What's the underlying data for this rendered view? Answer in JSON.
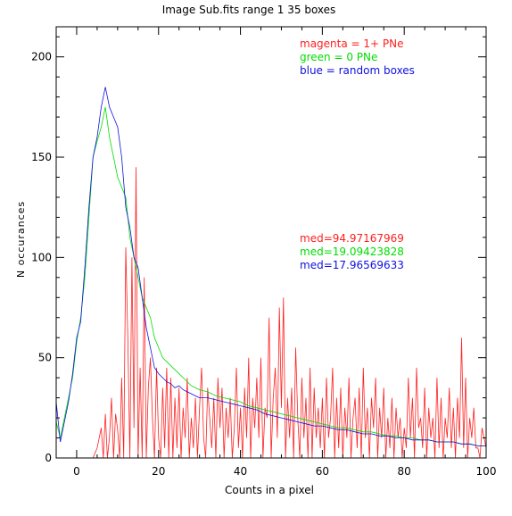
{
  "chart_data": {
    "type": "line",
    "title": "Image Sub.fits   range 1    35 boxes",
    "xlabel": "Counts in a pixel",
    "ylabel": "N occurances",
    "xlim": [
      -5,
      100
    ],
    "ylim": [
      0,
      215
    ],
    "xticks": [
      0,
      20,
      40,
      60,
      80,
      100
    ],
    "yticks": [
      0,
      50,
      100,
      150,
      200
    ],
    "grid": false,
    "legend_position": "top-right",
    "legend": [
      {
        "text": "magenta = 1+ PNe",
        "color": "#ff2020"
      },
      {
        "text": "green = 0 PNe",
        "color": "#00dd00"
      },
      {
        "text": "blue = random boxes",
        "color": "#1010e0"
      }
    ],
    "medians": [
      {
        "text": "med=94.97167969",
        "color": "#ff2020"
      },
      {
        "text": "med=19.09423828",
        "color": "#00dd00"
      },
      {
        "text": "med=17.96569633",
        "color": "#1010e0"
      }
    ],
    "series": [
      {
        "color": "#ff2020",
        "x": [
          3,
          4,
          5,
          6,
          6.5,
          7,
          7.5,
          8,
          8.5,
          9,
          9.5,
          10,
          10.5,
          11,
          11.5,
          12,
          12.5,
          13,
          13.5,
          14,
          14.5,
          15,
          15.5,
          16,
          16.5,
          17,
          17.5,
          18,
          18.5,
          19,
          19.5,
          20,
          20.5,
          21,
          21.5,
          22,
          22.5,
          23,
          23.5,
          24,
          24.5,
          25,
          25.5,
          26,
          26.5,
          27,
          27.5,
          28,
          28.5,
          29,
          29.5,
          30,
          30.5,
          31,
          31.5,
          32,
          32.5,
          33,
          33.5,
          34,
          34.5,
          35,
          35.5,
          36,
          36.5,
          37,
          37.5,
          38,
          38.5,
          39,
          39.5,
          40,
          40.5,
          41,
          41.5,
          42,
          42.5,
          43,
          43.5,
          44,
          44.5,
          45,
          45.5,
          46,
          46.5,
          47,
          47.5,
          48,
          48.5,
          49,
          49.5,
          50,
          50.5,
          51,
          51.5,
          52,
          52.5,
          53,
          53.5,
          54,
          54.5,
          55,
          55.5,
          56,
          56.5,
          57,
          57.5,
          58,
          58.5,
          59,
          59.5,
          60,
          60.5,
          61,
          61.5,
          62,
          62.5,
          63,
          63.5,
          64,
          64.5,
          65,
          65.5,
          66,
          66.5,
          67,
          67.5,
          68,
          68.5,
          69,
          69.5,
          70,
          70.5,
          71,
          71.5,
          72,
          72.5,
          73,
          73.5,
          74,
          74.5,
          75,
          75.5,
          76,
          76.5,
          77,
          77.5,
          78,
          78.5,
          79,
          79.5,
          80,
          80.5,
          81,
          81.5,
          82,
          82.5,
          83,
          83.5,
          84,
          84.5,
          85,
          85.5,
          86,
          86.5,
          87,
          87.5,
          88,
          88.5,
          89,
          89.5,
          90,
          90.5,
          91,
          91.5,
          92,
          92.5,
          93,
          93.5,
          94,
          94.5,
          95,
          95.5,
          96,
          96.5,
          97,
          97.5,
          98,
          98.5,
          99,
          99.5,
          100
        ],
        "y": [
          0,
          0,
          5,
          15,
          0,
          22,
          0,
          10,
          30,
          0,
          22,
          14,
          0,
          40,
          0,
          105,
          60,
          0,
          100,
          15,
          145,
          0,
          45,
          0,
          90,
          0,
          35,
          50,
          20,
          0,
          45,
          10,
          0,
          35,
          5,
          45,
          0,
          40,
          0,
          30,
          5,
          35,
          0,
          25,
          10,
          40,
          0,
          20,
          5,
          30,
          0,
          25,
          45,
          10,
          0,
          35,
          20,
          5,
          30,
          0,
          40,
          15,
          35,
          0,
          25,
          10,
          30,
          0,
          15,
          45,
          5,
          25,
          0,
          35,
          10,
          50,
          0,
          30,
          15,
          40,
          10,
          50,
          0,
          25,
          20,
          70,
          0,
          30,
          45,
          10,
          75,
          25,
          80,
          0,
          30,
          10,
          35,
          0,
          55,
          20,
          0,
          40,
          10,
          30,
          0,
          45,
          0,
          35,
          10,
          25,
          5,
          30,
          0,
          40,
          10,
          20,
          45,
          0,
          30,
          5,
          35,
          0,
          25,
          10,
          40,
          0,
          20,
          30,
          5,
          35,
          0,
          45,
          10,
          25,
          0,
          30,
          15,
          40,
          0,
          25,
          10,
          35,
          0,
          20,
          5,
          30,
          0,
          25,
          10,
          20,
          0,
          15,
          5,
          40,
          10,
          30,
          0,
          45,
          15,
          20,
          5,
          35,
          0,
          25,
          10,
          20,
          0,
          40,
          5,
          30,
          0,
          20,
          10,
          35,
          5,
          25,
          0,
          30,
          10,
          60,
          5,
          40,
          0,
          20,
          10,
          25,
          5,
          5,
          0,
          15,
          10,
          5
        ],
        "width": 0.8
      },
      {
        "color": "#00dd00",
        "x": [
          -5,
          -4,
          -3,
          -2,
          -1,
          0,
          1,
          2,
          3,
          4,
          5,
          6,
          7,
          8,
          9,
          10,
          11,
          12,
          13,
          14,
          15,
          16,
          17,
          18,
          19,
          20,
          21,
          22,
          23,
          24,
          25,
          26,
          27,
          28,
          29,
          30,
          32,
          34,
          36,
          38,
          40,
          42,
          44,
          46,
          48,
          50,
          52,
          54,
          56,
          58,
          60,
          62,
          64,
          66,
          68,
          70,
          72,
          74,
          76,
          78,
          80,
          82,
          84,
          86,
          88,
          90,
          92,
          94,
          96,
          98,
          100
        ],
        "y": [
          18,
          10,
          20,
          30,
          40,
          58,
          70,
          90,
          120,
          150,
          158,
          165,
          175,
          160,
          150,
          140,
          135,
          130,
          110,
          100,
          90,
          80,
          75,
          70,
          60,
          55,
          50,
          48,
          46,
          44,
          42,
          40,
          38,
          36,
          35,
          34,
          33,
          31,
          30,
          29,
          28,
          26,
          25,
          24,
          23,
          22,
          21,
          20,
          19,
          18,
          17,
          16,
          15,
          15,
          14,
          13,
          13,
          12,
          11,
          11,
          10,
          10,
          9,
          9,
          8,
          8,
          8,
          7,
          7,
          6,
          6
        ],
        "width": 0.8
      },
      {
        "color": "#1010e0",
        "x": [
          -5,
          -4,
          -3,
          -2,
          -1,
          0,
          1,
          2,
          3,
          4,
          5,
          6,
          7,
          8,
          9,
          10,
          11,
          12,
          13,
          14,
          15,
          16,
          17,
          18,
          19,
          20,
          21,
          22,
          23,
          24,
          25,
          26,
          27,
          28,
          29,
          30,
          32,
          34,
          36,
          38,
          40,
          42,
          44,
          46,
          48,
          50,
          52,
          54,
          56,
          58,
          60,
          62,
          64,
          66,
          68,
          70,
          72,
          74,
          76,
          78,
          80,
          82,
          84,
          86,
          88,
          90,
          92,
          94,
          96,
          98,
          100
        ],
        "y": [
          28,
          8,
          18,
          28,
          42,
          60,
          68,
          95,
          125,
          150,
          160,
          175,
          185,
          175,
          170,
          165,
          150,
          125,
          115,
          100,
          95,
          80,
          65,
          55,
          45,
          42,
          40,
          38,
          37,
          35,
          36,
          34,
          33,
          32,
          31,
          30,
          30,
          29,
          28,
          27,
          26,
          25,
          24,
          22,
          21,
          20,
          19,
          18,
          17,
          16,
          16,
          15,
          14,
          14,
          13,
          12,
          12,
          11,
          11,
          10,
          10,
          9,
          9,
          9,
          8,
          8,
          8,
          7,
          7,
          6,
          6
        ],
        "width": 0.8
      }
    ]
  }
}
